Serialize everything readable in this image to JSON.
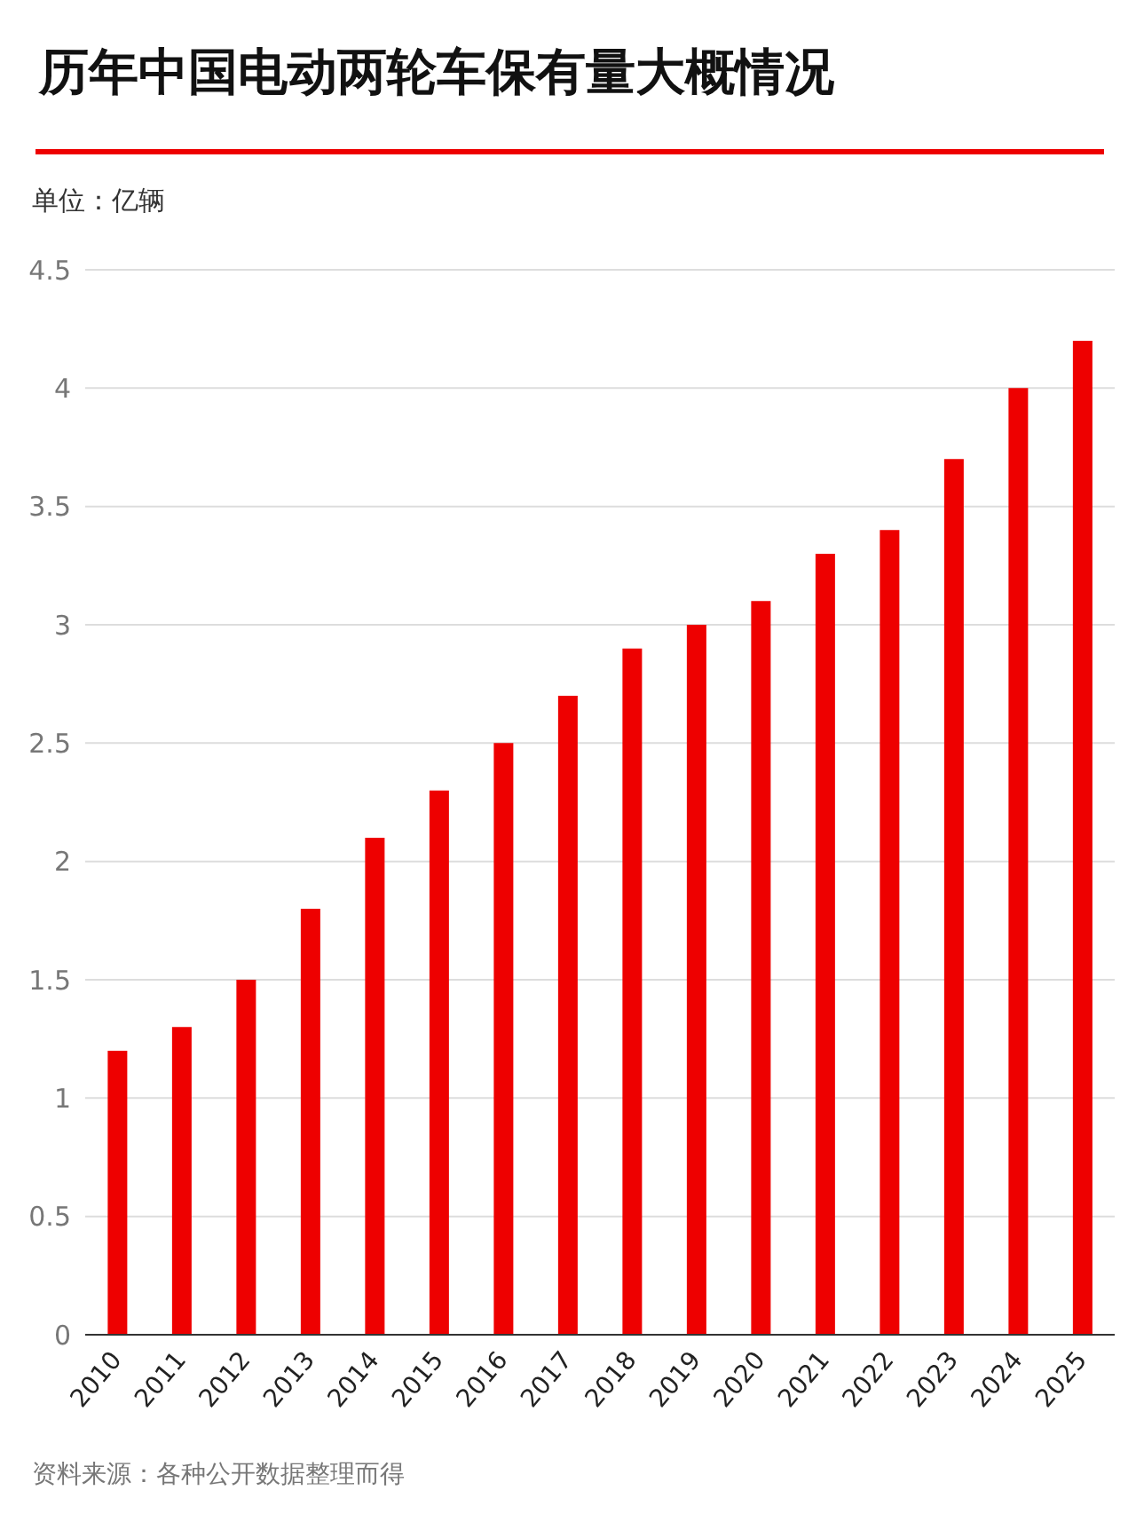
{
  "chart_data": {
    "type": "bar",
    "title": "历年中国电动两轮车保有量大概情况",
    "ylabel": "单位：亿辆",
    "annotations": [
      "资料来源：各种公开数据整理而得"
    ],
    "categories": [
      "2010",
      "2011",
      "2012",
      "2013",
      "2014",
      "2015",
      "2016",
      "2017",
      "2018",
      "2019",
      "2020",
      "2021",
      "2022",
      "2023",
      "2024",
      "2025"
    ],
    "values": [
      1.2,
      1.3,
      1.5,
      1.8,
      2.1,
      2.3,
      2.5,
      2.7,
      2.9,
      3.0,
      3.1,
      3.3,
      3.4,
      3.7,
      4.0,
      4.2
    ],
    "color": "#ee0000",
    "ylim": [
      0,
      4.5
    ],
    "yticks": [
      0,
      0.5,
      1,
      1.5,
      2,
      2.5,
      3,
      3.5,
      4,
      4.5
    ],
    "grid": "y"
  }
}
